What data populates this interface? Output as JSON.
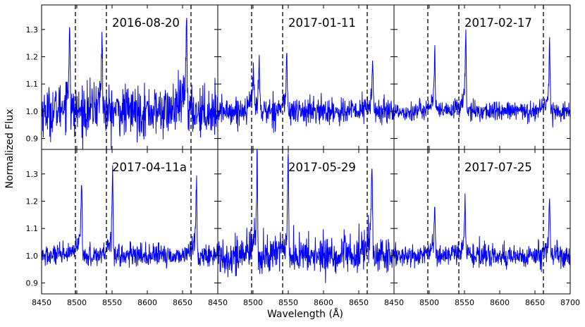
{
  "figure": {
    "ylabel": "Normalized Flux",
    "xlabel": "Wavelength (Å)"
  },
  "chart_data": [
    {
      "type": "line",
      "title": "2016-08-20",
      "xlim": [
        8450,
        8700
      ],
      "ylim": [
        0.86,
        1.39
      ],
      "xticks": [],
      "yticks": [
        0.9,
        1.0,
        1.1,
        1.2,
        1.3
      ],
      "ytick_labels": [
        "0.9",
        "1.0",
        "1.1",
        "1.2",
        "1.3"
      ],
      "reference_lines": [
        8498,
        8542,
        8662
      ],
      "features": [
        {
          "center": 8490,
          "peak": 1.27
        },
        {
          "center": 8536,
          "peak": 1.23
        },
        {
          "center": 8656,
          "peak": 1.28
        }
      ],
      "continuum": 1.0,
      "noise": 0.045,
      "line_color": "#0000ff"
    },
    {
      "type": "line",
      "title": "2017-01-11",
      "xlim": [
        8450,
        8700
      ],
      "ylim": [
        0.86,
        1.39
      ],
      "xticks": [],
      "yticks": [],
      "reference_lines": [
        8498,
        8542,
        8662
      ],
      "features": [
        {
          "center": 8501,
          "peak": 1.12
        },
        {
          "center": 8509,
          "peak": 1.15
        },
        {
          "center": 8548,
          "peak": 1.16
        },
        {
          "center": 8670,
          "peak": 1.14
        }
      ],
      "continuum": 1.0,
      "noise": 0.025,
      "line_color": "#0000ff"
    },
    {
      "type": "line",
      "title": "2017-02-17",
      "xlim": [
        8450,
        8700
      ],
      "ylim": [
        0.86,
        1.39
      ],
      "xticks": [],
      "yticks": [],
      "reference_lines": [
        8498,
        8542,
        8662
      ],
      "features": [
        {
          "center": 8508,
          "peak": 1.17
        },
        {
          "center": 8552,
          "peak": 1.22
        },
        {
          "center": 8671,
          "peak": 1.2
        }
      ],
      "continuum": 1.0,
      "noise": 0.018,
      "line_color": "#0000ff"
    },
    {
      "type": "line",
      "title": "2017-04-11a",
      "xlim": [
        8450,
        8700
      ],
      "ylim": [
        0.86,
        1.39
      ],
      "xticks": [
        8450,
        8500,
        8550,
        8600,
        8650
      ],
      "xtick_labels": [
        "8450",
        "8500",
        "8550",
        "8600",
        "8650"
      ],
      "yticks": [
        0.9,
        1.0,
        1.1,
        1.2,
        1.3
      ],
      "ytick_labels": [
        "0.9",
        "1.0",
        "1.1",
        "1.2",
        "1.3"
      ],
      "reference_lines": [
        8498,
        8542,
        8662
      ],
      "features": [
        {
          "center": 8507,
          "peak": 1.23
        },
        {
          "center": 8551,
          "peak": 1.26
        },
        {
          "center": 8670,
          "peak": 1.21
        }
      ],
      "continuum": 1.0,
      "noise": 0.02,
      "line_color": "#0000ff"
    },
    {
      "type": "line",
      "title": "2017-05-29",
      "xlim": [
        8450,
        8700
      ],
      "ylim": [
        0.86,
        1.39
      ],
      "xticks": [
        8450,
        8500,
        8550,
        8600,
        8650
      ],
      "xtick_labels": [
        "8450",
        "8500",
        "8550",
        "8600",
        "8650"
      ],
      "yticks": [],
      "reference_lines": [
        8498,
        8542,
        8662
      ],
      "features": [
        {
          "center": 8506,
          "peak": 1.27
        },
        {
          "center": 8550,
          "peak": 1.27
        },
        {
          "center": 8669,
          "peak": 1.28
        }
      ],
      "continuum": 1.0,
      "noise": 0.035,
      "line_color": "#0000ff"
    },
    {
      "type": "line",
      "title": "2017-07-25",
      "xlim": [
        8450,
        8700
      ],
      "ylim": [
        0.86,
        1.39
      ],
      "xticks": [
        8450,
        8500,
        8550,
        8600,
        8650,
        8700
      ],
      "xtick_labels": [
        "8450",
        "8500",
        "8550",
        "8600",
        "8650",
        "8700"
      ],
      "yticks": [],
      "reference_lines": [
        8498,
        8542,
        8662
      ],
      "features": [
        {
          "center": 8508,
          "peak": 1.14
        },
        {
          "center": 8551,
          "peak": 1.16
        },
        {
          "center": 8671,
          "peak": 1.17
        }
      ],
      "continuum": 1.0,
      "noise": 0.02,
      "line_color": "#0000ff"
    }
  ]
}
